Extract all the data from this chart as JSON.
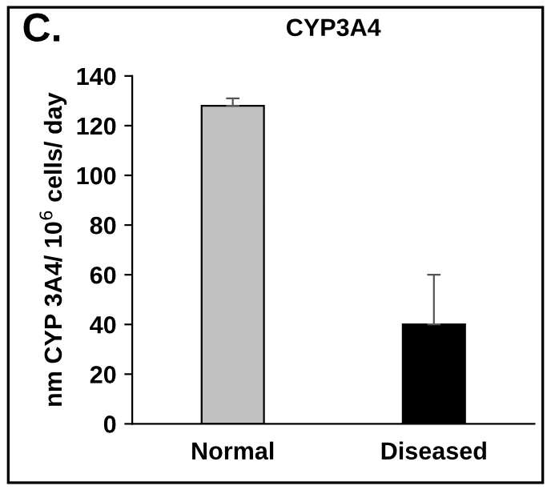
{
  "chart_data": {
    "type": "bar",
    "title": "CYP3A4",
    "ylabel": "nm CYP 3A4/ 10$^{6}$ cells/ day",
    "annotations": [
      "C."
    ],
    "categories": [
      "Normal",
      "Diseased"
    ],
    "values": [
      128,
      40
    ],
    "colors": [
      "#c0c0c0",
      "#000000"
    ],
    "errors": [
      [
        128,
        131
      ],
      [
        40,
        60
      ]
    ],
    "ylim": [
      0,
      140
    ],
    "yticks": [
      0,
      20,
      40,
      60,
      80,
      100,
      120,
      140
    ],
    "grid": false,
    "legend": false
  }
}
